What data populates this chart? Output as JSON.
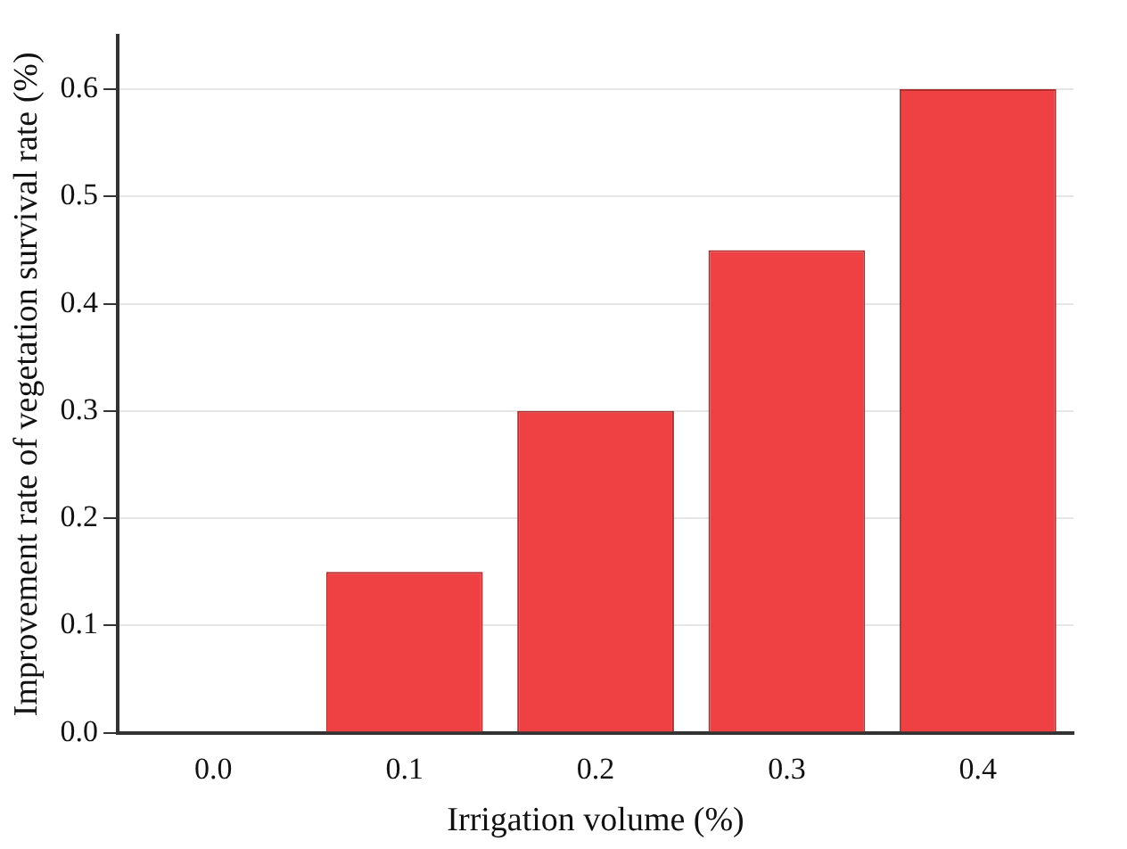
{
  "chart_data": {
    "type": "bar",
    "xlabel": "Irrigation volume (%)",
    "ylabel": "Improvement rate of vegetation survival rate (%)",
    "categories": [
      "0.0",
      "0.1",
      "0.2",
      "0.3",
      "0.4"
    ],
    "values": [
      0,
      0.15,
      0.3,
      0.45,
      0.6
    ],
    "color": "#ef4043",
    "ylim": [
      0,
      0.65
    ],
    "yticks": [
      {
        "value": 0,
        "label": "0.0"
      },
      {
        "value": 0.1,
        "label": "0.1"
      },
      {
        "value": 0.2,
        "label": "0.2"
      },
      {
        "value": 0.3,
        "label": "0.3"
      },
      {
        "value": 0.4,
        "label": "0.4"
      },
      {
        "value": 0.5,
        "label": "0.5"
      },
      {
        "value": 0.6,
        "label": "0.6"
      }
    ],
    "grid": "y",
    "legend": false
  }
}
